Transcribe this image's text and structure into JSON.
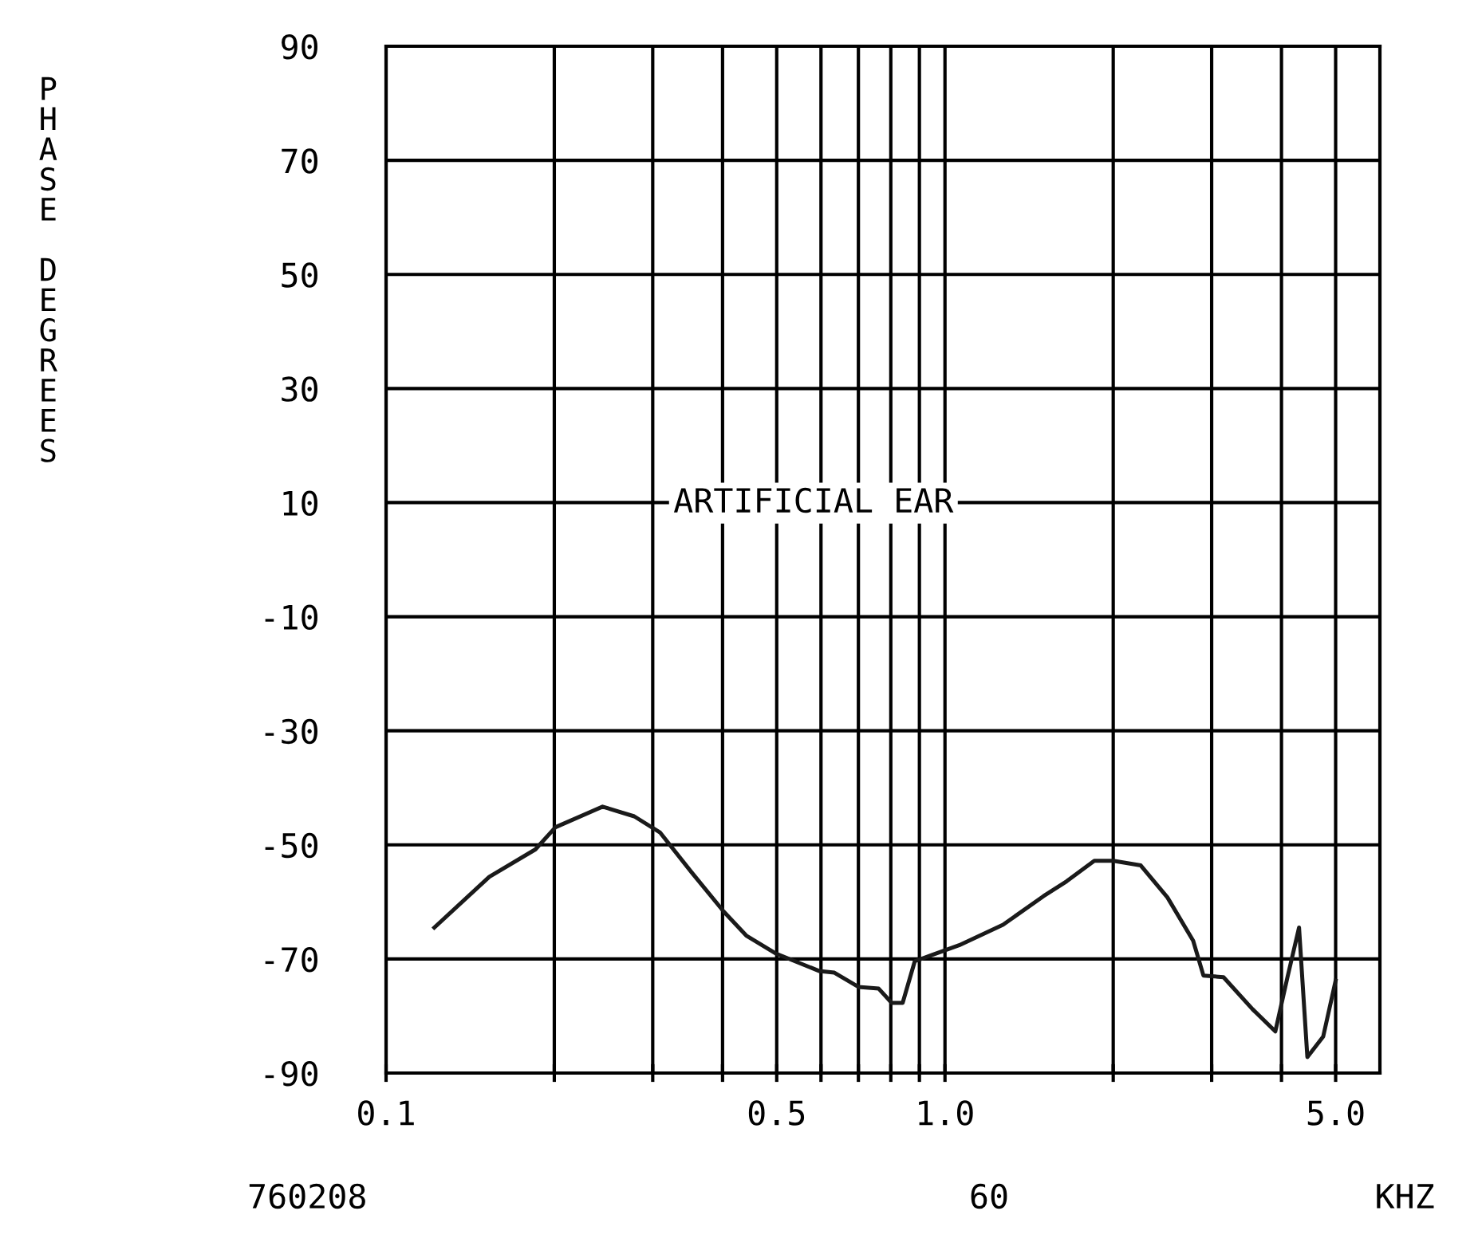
{
  "chart_data": {
    "type": "line",
    "xlabel": "KHZ",
    "ylabel": "PHASE DEGREES",
    "log": "x",
    "grid": true,
    "marker": "none",
    "line_style": "solid",
    "xlim": [
      0.1,
      6
    ],
    "ylim": [
      -90,
      90
    ],
    "xticks": [
      {
        "value": 0.1,
        "label": "0.1"
      },
      {
        "value": 0.2,
        "label": null
      },
      {
        "value": 0.3,
        "label": null
      },
      {
        "value": 0.4,
        "label": null
      },
      0.5,
      {
        "value": 0.6,
        "label": null
      },
      {
        "value": 0.7,
        "label": null
      },
      {
        "value": 0.8,
        "label": null
      },
      {
        "value": 0.9,
        "label": null
      },
      {
        "value": 1,
        "label": "1.0"
      },
      {
        "value": 2,
        "label": null
      },
      {
        "value": 3,
        "label": null
      },
      {
        "value": 4,
        "label": null
      },
      {
        "value": 5,
        "label": "5.0"
      }
    ],
    "yticks": [
      90,
      70,
      50,
      30,
      10,
      -10,
      -30,
      -50,
      -70,
      -90
    ],
    "annotations": [
      "ARTIFICIAL EAR",
      "760208",
      "60"
    ],
    "series": [
      {
        "color": "#1a1a1a",
        "x": [
          0.122,
          0.153,
          0.185,
          0.201,
          0.244,
          0.278,
          0.309,
          0.352,
          0.402,
          0.441,
          0.497,
          0.595,
          0.634,
          0.7,
          0.761,
          0.803,
          0.84,
          0.883,
          0.948,
          1.06,
          1.27,
          1.5,
          1.65,
          1.85,
          2.0,
          2.24,
          2.5,
          2.78,
          2.9,
          3.15,
          3.55,
          3.9,
          4.1,
          4.3,
          4.45,
          4.75,
          5.0
        ],
        "values": [
          -64.5,
          -55.6,
          -50.8,
          -46.9,
          -43.3,
          -45,
          -47.8,
          -54.8,
          -61.7,
          -65.9,
          -69,
          -72.1,
          -72.4,
          -74.9,
          -75.2,
          -77.7,
          -77.7,
          -70.4,
          -69.3,
          -67.6,
          -64,
          -59,
          -56.4,
          -52.8,
          -52.8,
          -53.6,
          -59.2,
          -66.8,
          -72.9,
          -73.2,
          -78.8,
          -82.7,
          -73.2,
          -64.5,
          -87.2,
          -83.6,
          -73.8
        ]
      }
    ]
  }
}
